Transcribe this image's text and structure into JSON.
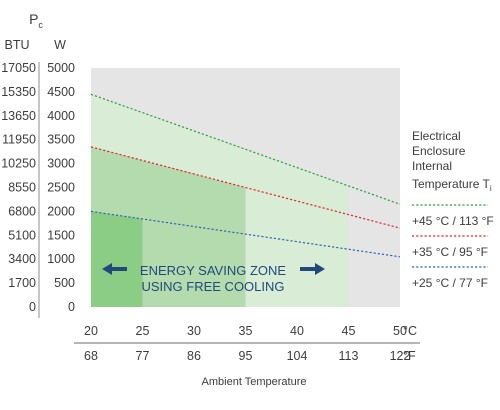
{
  "chart_data": {
    "type": "line",
    "y_symbol": "P",
    "y_symbol_subscript": "c",
    "y_units": [
      "BTU",
      "W"
    ],
    "y_ticks_w": [
      5000,
      4500,
      4000,
      3500,
      3000,
      2500,
      2000,
      1500,
      1000,
      500,
      0
    ],
    "y_ticks_btu": [
      17050,
      15350,
      13650,
      11950,
      10250,
      8550,
      6800,
      5100,
      3400,
      1700,
      0
    ],
    "ylim": [
      0,
      5000
    ],
    "x_ticks_c": [
      "20",
      "25",
      "30",
      "35",
      "40",
      "45",
      "50"
    ],
    "x_ticks_f": [
      "68",
      "77",
      "86",
      "95",
      "104",
      "113",
      "122"
    ],
    "x_unit_c": "°C",
    "x_unit_f": "°F",
    "xlim": [
      20,
      50
    ],
    "xlabel": "Ambient Temperature",
    "legend": {
      "title_lines": [
        "Electrical",
        "Enclosure",
        "Internal"
      ],
      "title_last": "Temperature T",
      "title_subscript": "i",
      "placement": "right"
    },
    "series": [
      {
        "name": "+45 °C / 113 °F",
        "color": "#2e9e47",
        "x": [
          20,
          50
        ],
        "y": [
          4450,
          2150
        ],
        "zone_end": 45,
        "zone_fill": "#d9ecd6"
      },
      {
        "name": "+35 °C / 95 °F",
        "color": "#e0262b",
        "x": [
          20,
          50
        ],
        "y": [
          3350,
          1650
        ],
        "zone_end": 35,
        "zone_fill": "#b4dbae"
      },
      {
        "name": "+25 °C / 77 °F",
        "color": "#2e64b4",
        "x": [
          20,
          50
        ],
        "y": [
          2000,
          1050
        ],
        "zone_end": 25,
        "zone_fill": "#8ccd86"
      }
    ],
    "annotation": {
      "lines": [
        "ENERGY SAVING ZONE",
        "USING FREE COOLING"
      ],
      "color": "#1f4a7a"
    },
    "grid": false,
    "plot_background": "#e5e5e5"
  }
}
